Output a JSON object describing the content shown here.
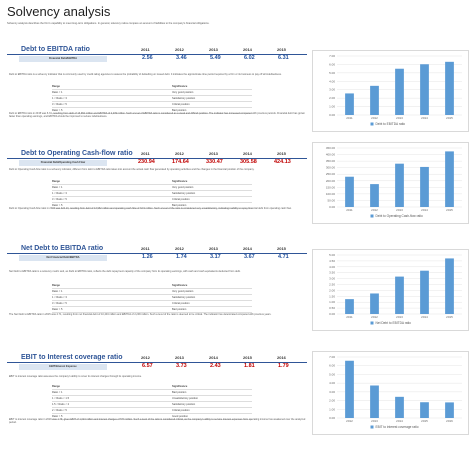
{
  "doc": {
    "title": "Solvency analysis",
    "intro": "Solvency analysis describes the firm's capability to meet long-term obligations. In general, solvency ratios compare an amount of liabilities to the company's financial obligations."
  },
  "years": [
    "2011",
    "2012",
    "2013",
    "2014",
    "2015"
  ],
  "years_ebit": [
    "2012",
    "2013",
    "2014",
    "2015",
    "2016"
  ],
  "ratio_table_headers": {
    "range": "Range",
    "significance": "Significance"
  },
  "sections": [
    {
      "title": "Debt to EBITDA ratio",
      "subheader": "Financial Debt/EBITDA",
      "values": [
        "2.56",
        "3.46",
        "5.49",
        "6.02",
        "6.31"
      ],
      "value_color": "#1f4e9b",
      "para1": "Debt to EBITDA ratio is a solvency indicator that is commonly used by credit rating agencies to assess the probability of defaulting on issued debt. It indicates the approximate time period required by a firm or its business to pay off all indebtedness.",
      "ranges": [
        {
          "range": "Ratio < 1",
          "significance": "Very good position"
        },
        {
          "range": "1 < Ratio < 3",
          "significance": "Satisfactory position"
        },
        {
          "range": "3 < Ratio < 5",
          "significance": "Critical position"
        },
        {
          "range": "Ratio > 5",
          "significance": "Bad position"
        }
      ],
      "para2": "Debt to EBITDA ratio in 2015 was 6.31, resulting from debt of 13,962 million and EBITDA of 2,209 million. Such a level of EBITDA ratio is considered as a weak and difficult position. The indicator has increased compared with previous periods. Financial debt has grown faster than operating earnings, and EBITDA should be improved to reduce indebtedness.",
      "chart": {
        "type": "bar",
        "categories": [
          "2011",
          "2012",
          "2013",
          "2014",
          "2015"
        ],
        "values": [
          2.56,
          3.46,
          5.49,
          6.02,
          6.31
        ],
        "ylim": [
          0,
          7
        ],
        "ticks": [
          "0.00",
          "1.00",
          "2.00",
          "3.00",
          "4.00",
          "5.00",
          "6.00",
          "7.00"
        ],
        "legend": "Debt to EBITDA ratio",
        "color": "#5b9bd5"
      }
    },
    {
      "title": "Debt to Operating Cash-flow ratio",
      "subheader": "Financial Debt/Operating Cash Flow",
      "values": [
        "230.94",
        "174.64",
        "330.47",
        "305.58",
        "424.13"
      ],
      "value_color": "#c00000",
      "para1": "Debt to Operating Cash-flow ratio is a solvency indicator, different from debt to EBITDA ratio takes into account the actual cash flow generated by operating activities and the changes in the financial position of the company.",
      "ranges": [
        {
          "range": "Ratio < 1",
          "significance": "Very good position"
        },
        {
          "range": "1 < Ratio < 3",
          "significance": "Satisfactory position"
        },
        {
          "range": "3 < Ratio < 5",
          "significance": "Critical position"
        },
        {
          "range": "Ratio > 5",
          "significance": "Bad position"
        }
      ],
      "para2": "Debt to Operating Cash-flow ratio in 2015 was 424.13, resulting from debt of 13,962 million and operating cash flow of 32.9 million. Such a level of the ratio is considered very unsatisfactory, indicating inability to repay financial debt from operating cash flow.",
      "chart": {
        "type": "bar",
        "categories": [
          "2011",
          "2012",
          "2013",
          "2014",
          "2015"
        ],
        "values": [
          230.94,
          174.64,
          330.47,
          305.58,
          424.13
        ],
        "ylim": [
          0,
          450
        ],
        "ticks": [
          "0.00",
          "50.00",
          "100.00",
          "150.00",
          "200.00",
          "250.00",
          "300.00",
          "350.00",
          "400.00",
          "450.00"
        ],
        "legend": "Debt to Operating Cash-flow ratio",
        "color": "#5b9bd5"
      }
    },
    {
      "title": "Net Debt to EBITDA ratio",
      "subheader": "Net Financial Debt/EBITDA",
      "values": [
        "1.26",
        "1.74",
        "3.17",
        "3.67",
        "4.71"
      ],
      "value_color": "#1f4e9b",
      "para1": "Net Debt to EBITDA ratio is a solvency metric and, as Debt to EBITDA ratio, reflects the debt repayment capacity of the company from its operating earnings, with cash and cash equivalents deducted from debt.",
      "ranges": [
        {
          "range": "Ratio < 1",
          "significance": "Very good position"
        },
        {
          "range": "1 < Ratio < 3",
          "significance": "Satisfactory position"
        },
        {
          "range": "3 < Ratio < 5",
          "significance": "Critical position"
        },
        {
          "range": "Ratio > 5",
          "significance": "Bad position"
        }
      ],
      "para2": "The Net Debt to EBITDA ratio in 2015 was 4.71, resulting from net financial debt of 10,404 million and EBITDA of 2,209 million. Such a level of the ratio is deemed to be critical. The indicator has deteriorated compared with previous years.",
      "chart": {
        "type": "bar",
        "categories": [
          "2011",
          "2012",
          "2013",
          "2014",
          "2015"
        ],
        "values": [
          1.26,
          1.74,
          3.17,
          3.67,
          4.71
        ],
        "ylim": [
          0,
          5
        ],
        "ticks": [
          "0.00",
          "0.50",
          "1.00",
          "1.50",
          "2.00",
          "2.50",
          "3.00",
          "3.50",
          "4.00",
          "4.50",
          "5.00"
        ],
        "legend": "Net Debt to EBITDA ratio",
        "color": "#5b9bd5"
      }
    },
    {
      "title": "EBIT to Interest coverage ratio",
      "subheader": "EBIT/Interest Expense",
      "values": [
        "6.57",
        "3.73",
        "2.43",
        "1.81",
        "1.79"
      ],
      "value_color": "#c00000",
      "para1": "EBIT to interest coverage ratio assesses the company's ability to cover its interest charges through its operating income.",
      "ranges": [
        {
          "range": "Ratio < 1",
          "significance": "Bad position"
        },
        {
          "range": "1 < Ratio < 1.5",
          "significance": "Unsatisfactory position"
        },
        {
          "range": "1.5 < Ratio < 2",
          "significance": "Satisfactory position"
        },
        {
          "range": "2 < Ratio < 5",
          "significance": "Critical position"
        },
        {
          "range": "Ratio > 5",
          "significance": "Good position"
        }
      ],
      "para2": "EBIT to interest coverage ratio in 2016 was 1.79, given EBIT of 1,024 million and interest charges of 573 million. Such a level of the ratio is considered critical, as the company's ability to service interest expenses from operating income has weakened over the analyzed period.",
      "chart": {
        "type": "bar",
        "categories": [
          "2012",
          "2013",
          "2014",
          "2015",
          "2016"
        ],
        "values": [
          6.57,
          3.73,
          2.43,
          1.81,
          1.79
        ],
        "ylim": [
          0,
          7
        ],
        "ticks": [
          "0.00",
          "1.00",
          "2.00",
          "3.00",
          "4.00",
          "5.00",
          "6.00",
          "7.00"
        ],
        "legend": "EBIT to interest coverage ratio",
        "color": "#5b9bd5"
      }
    }
  ]
}
